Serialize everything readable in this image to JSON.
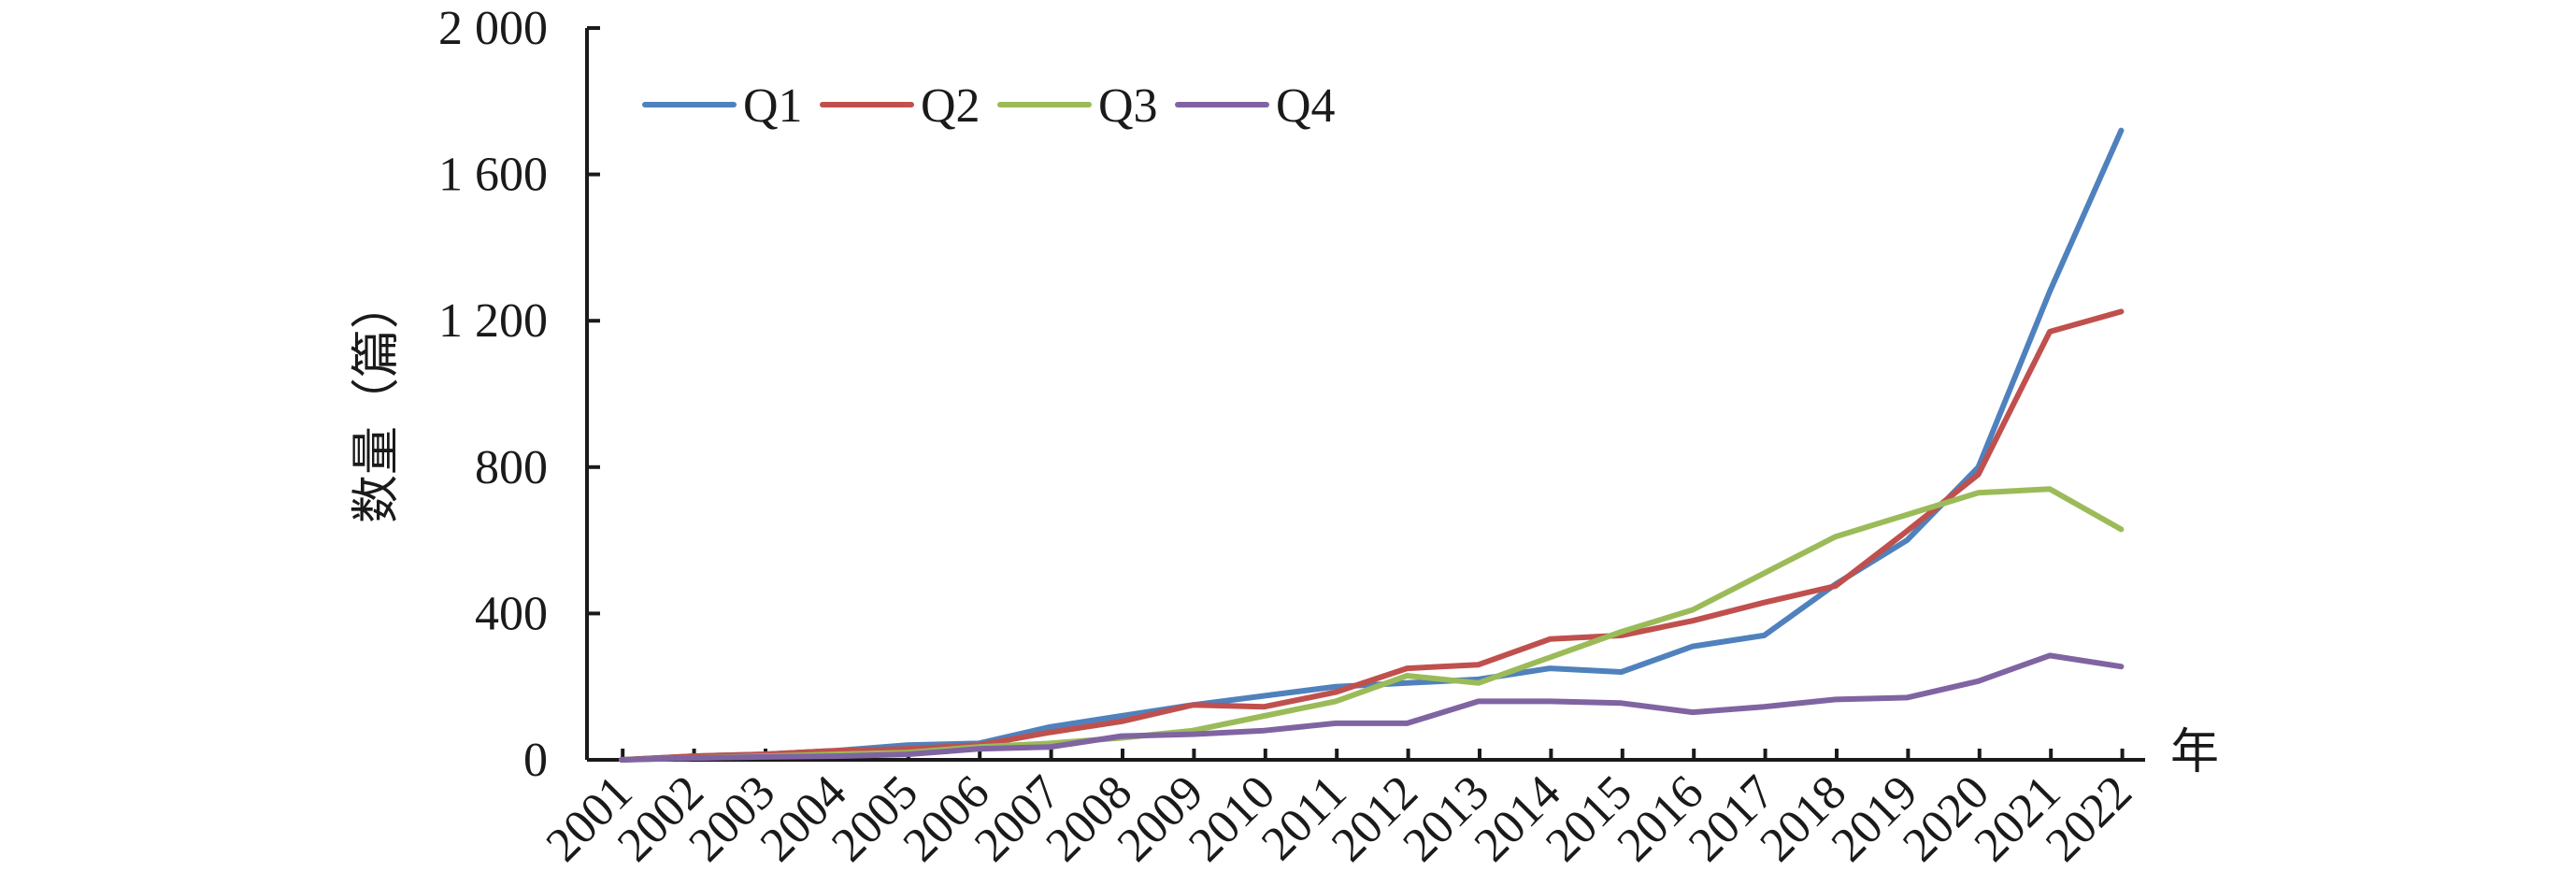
{
  "chart_data": {
    "type": "line",
    "title": "",
    "xlabel": "年",
    "ylabel": "数量（篇）",
    "ylim": [
      0,
      2000
    ],
    "yticks": [
      0,
      400,
      800,
      1200,
      1600,
      2000
    ],
    "ytick_labels": [
      "0",
      "400",
      "800",
      "1 200",
      "1 600",
      "2 000"
    ],
    "categories": [
      "2001",
      "2002",
      "2003",
      "2004",
      "2005",
      "2006",
      "2007",
      "2008",
      "2009",
      "2010",
      "2011",
      "2012",
      "2013",
      "2014",
      "2015",
      "2016",
      "2017",
      "2018",
      "2019",
      "2020",
      "2021",
      "2022"
    ],
    "grid": false,
    "legend_position": "top-left",
    "series": [
      {
        "name": "Q1",
        "color": "#4f81bd",
        "values": [
          0,
          10,
          15,
          25,
          40,
          45,
          90,
          120,
          150,
          175,
          200,
          210,
          220,
          250,
          240,
          310,
          340,
          480,
          600,
          800,
          1280,
          1720
        ]
      },
      {
        "name": "Q2",
        "color": "#c0504d",
        "values": [
          0,
          10,
          15,
          25,
          30,
          40,
          75,
          105,
          150,
          145,
          185,
          250,
          260,
          330,
          340,
          380,
          430,
          475,
          625,
          780,
          1170,
          1225
        ]
      },
      {
        "name": "Q3",
        "color": "#9bbb59",
        "values": [
          0,
          5,
          10,
          15,
          20,
          35,
          45,
          60,
          80,
          120,
          160,
          230,
          210,
          280,
          350,
          410,
          510,
          610,
          670,
          730,
          740,
          630
        ]
      },
      {
        "name": "Q4",
        "color": "#8064a2",
        "values": [
          0,
          5,
          8,
          10,
          15,
          30,
          35,
          65,
          70,
          80,
          100,
          100,
          160,
          160,
          155,
          130,
          145,
          165,
          170,
          215,
          285,
          255
        ]
      }
    ]
  }
}
